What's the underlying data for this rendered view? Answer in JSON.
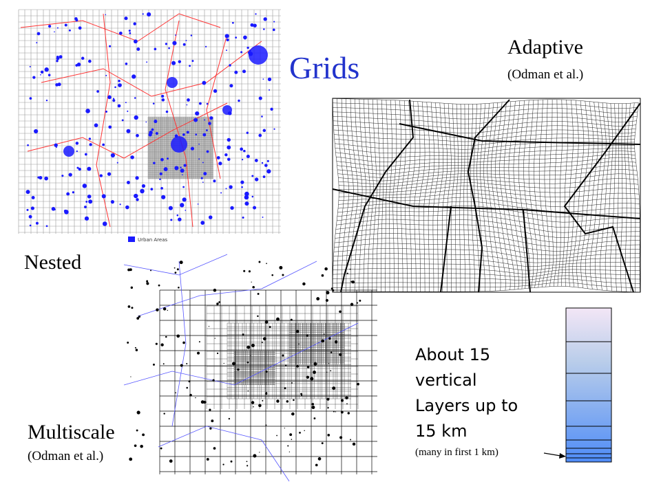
{
  "title": "Grids",
  "nested": {
    "label": "Nested",
    "legend": "Urban Areas"
  },
  "adaptive": {
    "label": "Adaptive",
    "credit": "(Odman et al.)"
  },
  "multiscale": {
    "label": "Multiscale",
    "credit": "(Odman et al.)"
  },
  "layers": {
    "lines": [
      "About 15",
      "vertical",
      "Layers up to",
      "15 km"
    ],
    "note": "(many in first 1 km)"
  }
}
